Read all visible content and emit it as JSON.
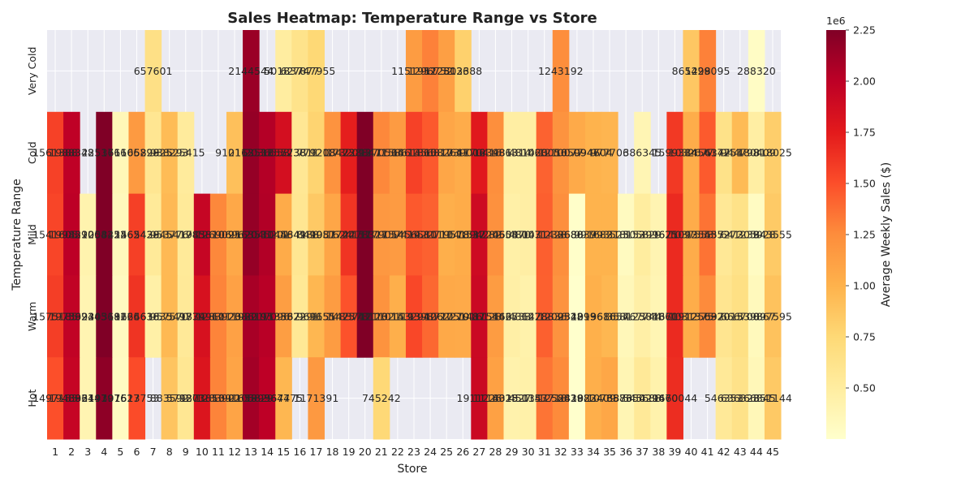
{
  "chart_data": {
    "type": "heatmap",
    "title": "Sales Heatmap: Temperature Range vs Store",
    "xlabel": "Store",
    "ylabel": "Temperature Range",
    "rows": [
      "Very Cold",
      "Cold",
      "Mild",
      "Warm",
      "Hot"
    ],
    "columns": [
      "1",
      "2",
      "3",
      "4",
      "5",
      "6",
      "7",
      "8",
      "9",
      "10",
      "11",
      "12",
      "13",
      "14",
      "15",
      "16",
      "17",
      "18",
      "19",
      "20",
      "21",
      "22",
      "23",
      "24",
      "25",
      "26",
      "27",
      "28",
      "29",
      "30",
      "31",
      "32",
      "33",
      "34",
      "35",
      "36",
      "37",
      "38",
      "39",
      "40",
      "41",
      "42",
      "43",
      "44",
      "45"
    ],
    "values": [
      [
        null,
        null,
        null,
        null,
        null,
        null,
        657601,
        null,
        null,
        null,
        null,
        null,
        2144544,
        null,
        501837,
        627877,
        747955,
        null,
        null,
        null,
        null,
        null,
        1151952,
        1296752,
        1125136,
        802388,
        null,
        null,
        null,
        null,
        null,
        1243192,
        null,
        null,
        null,
        null,
        null,
        null,
        null,
        865429,
        1298095,
        null,
        null,
        288320,
        null
      ],
      [
        1561388,
        1988348,
        null,
        2251766,
        361106,
        1165298,
        582925,
        938293,
        525415,
        null,
        null,
        910112,
        2163531,
        2036553,
        1857238,
        573811,
        779213,
        1208473,
        1732093,
        2288471,
        1270564,
        1158613,
        1561865,
        1456817,
        1082641,
        1039006,
        1770416,
        1239863,
        481314,
        481063,
        1420056,
        1210077,
        1050947,
        994604,
        977706,
        null,
        386345,
        null,
        1599384,
        1032677,
        1454172,
        634751,
        944798,
        480409,
        818025
      ],
      [
        1541605,
        1998590,
        421004,
        2258252,
        342462,
        1565438,
        542945,
        953776,
        541783,
        1945810,
        1269095,
        1069620,
        2163531,
        2045201,
        1044649,
        584188,
        849957,
        1081744,
        1624157,
        2278327,
        1179054,
        1157419,
        1456581,
        1422711,
        1019578,
        1041537,
        1894282,
        1220554,
        460870,
        480071,
        1431428,
        1238680,
        268837,
        991682,
        993523,
        318152,
        505829,
        399625,
        1671092,
        1037553,
        1354352,
        557272,
        641239,
        305928,
        843555
      ],
      [
        1575185,
        1975624,
        399245,
        2303682,
        319166,
        1625636,
        461835,
        957570,
        549779,
        1834960,
        1283923,
        1111982,
        2086195,
        2017096,
        1133822,
        567291,
        969655,
        1151475,
        1483741,
        2378123,
        1211014,
        1021193,
        1532942,
        1398727,
        1062270,
        1051487,
        1916128,
        1151425,
        466733,
        436278,
        1428836,
        1209528,
        234299,
        1013616,
        968657,
        358125,
        467744,
        384361,
        1670912,
        1031375,
        1256320,
        597015,
        666700,
        339867,
        897595
      ],
      [
        1497183,
        1948831,
        396447,
        2191976,
        307627,
        1513753,
        null,
        883592,
        579273,
        1801853,
        1283902,
        1091658,
        2105829,
        1995647,
        967475,
        null,
        1171391,
        null,
        null,
        null,
        745242,
        null,
        null,
        null,
        null,
        null,
        1911226,
        1118028,
        431527,
        450153,
        1347718,
        1258829,
        243882,
        1023409,
        1076583,
        387650,
        545688,
        429470,
        1660044,
        null,
        null,
        546351,
        636323,
        366345,
        851144
      ]
    ],
    "cell_labels": [
      [
        "",
        "",
        "",
        "",
        "",
        "",
        "657601",
        "",
        "",
        "",
        "",
        "",
        "2144544",
        "",
        "501837",
        "627877",
        "747955",
        "",
        "",
        "",
        "",
        "",
        "1151952",
        "1296752",
        "1125136",
        "802388",
        "",
        "",
        "",
        "",
        "",
        "1243192",
        "",
        "",
        "",
        "",
        "",
        "",
        "",
        "865429",
        "1298095",
        "",
        "",
        "288320",
        ""
      ],
      [
        "1561388",
        "1988348",
        "",
        "2251766",
        "361106",
        "1165298",
        "582925",
        "938293",
        "525415",
        "",
        "",
        "910112",
        "2163531",
        "2036553",
        "1857238",
        "573811",
        "779213",
        "1208473",
        "1732093",
        "2288471",
        "1270564",
        "1158613",
        "1561865",
        "1456817",
        "1082641",
        "1039006",
        "1770416",
        "1239863",
        "481314",
        "481063",
        "1420056",
        "1210077",
        "1050947",
        "994604",
        "977706",
        "",
        "386345",
        "",
        "1599384",
        "1032677",
        "1454172",
        "634751",
        "944798",
        "480409",
        "818025"
      ],
      [
        "1541605",
        "1998590",
        "421004",
        "2258252",
        "342462",
        "1565438",
        "542945",
        "953776",
        "541783",
        "1945810",
        "1269095",
        "1069620",
        "2163531",
        "2045201",
        "1044649",
        "584188",
        "849957",
        "1081744",
        "1624157",
        "2278327",
        "1179054",
        "1157419",
        "1456581",
        "1422711",
        "1019578",
        "1041537",
        "1894282",
        "1220554",
        "460870",
        "480071",
        "1431428",
        "1238680",
        "268837",
        "991682",
        "993523",
        "318152",
        "505829",
        "399625",
        "1671092",
        "1037553",
        "1354352",
        "557272",
        "641239",
        "305928",
        "843555"
      ],
      [
        "1575185",
        "1975624",
        "399245",
        "2303682",
        "319166",
        "1625636",
        "461835",
        "957570",
        "549779",
        "1834960",
        "1283923",
        "1111982",
        "2086195",
        "2017096",
        "1133822",
        "567291",
        "969655",
        "1151475",
        "1483741",
        "2378123",
        "1211014",
        "1021193",
        "1532942",
        "1398727",
        "1062270",
        "1051487",
        "1916128",
        "1151425",
        "466733",
        "436278",
        "1428836",
        "1209528",
        "234299",
        "1013616",
        "968657",
        "358125",
        "467744",
        "384361",
        "1670912",
        "1031375",
        "1256320",
        "597015",
        "666700",
        "339867",
        "897595"
      ],
      [
        "1497183",
        "1948831",
        "396447",
        "2191976",
        "307627",
        "1513753",
        "",
        "883592",
        "579273",
        "1801853",
        "1283902",
        "1091658",
        "2105829",
        "1995647",
        "967475",
        "",
        "1171391",
        "",
        "",
        "",
        "745242",
        "",
        "",
        "",
        "",
        "",
        "1911226",
        "1118028",
        "431527",
        "450153",
        "1347718",
        "1258829",
        "243882",
        "1023409",
        "1076583",
        "387650",
        "545688",
        "429470",
        "1660044",
        "",
        "",
        "546351",
        "636323",
        "366345",
        "851144"
      ]
    ],
    "colorbar": {
      "label": "Average Weekly Sales ($)",
      "offset_text": "1e6",
      "min": 0.25,
      "max": 2.25,
      "ticks": [
        "0.50",
        "0.75",
        "1.00",
        "1.25",
        "1.50",
        "1.75",
        "2.00",
        "2.25"
      ],
      "tick_values": [
        0.5,
        0.75,
        1.0,
        1.25,
        1.5,
        1.75,
        2.0,
        2.25
      ],
      "colormap": "YlOrRd",
      "stops": [
        "#ffffcc",
        "#ffeda0",
        "#fed976",
        "#feb24c",
        "#fd8d3c",
        "#fc4e2a",
        "#e31a1c",
        "#bd0026",
        "#800026"
      ]
    },
    "missing_color": "#eaeaf2",
    "grid": true,
    "legend": "colorbar-right"
  }
}
